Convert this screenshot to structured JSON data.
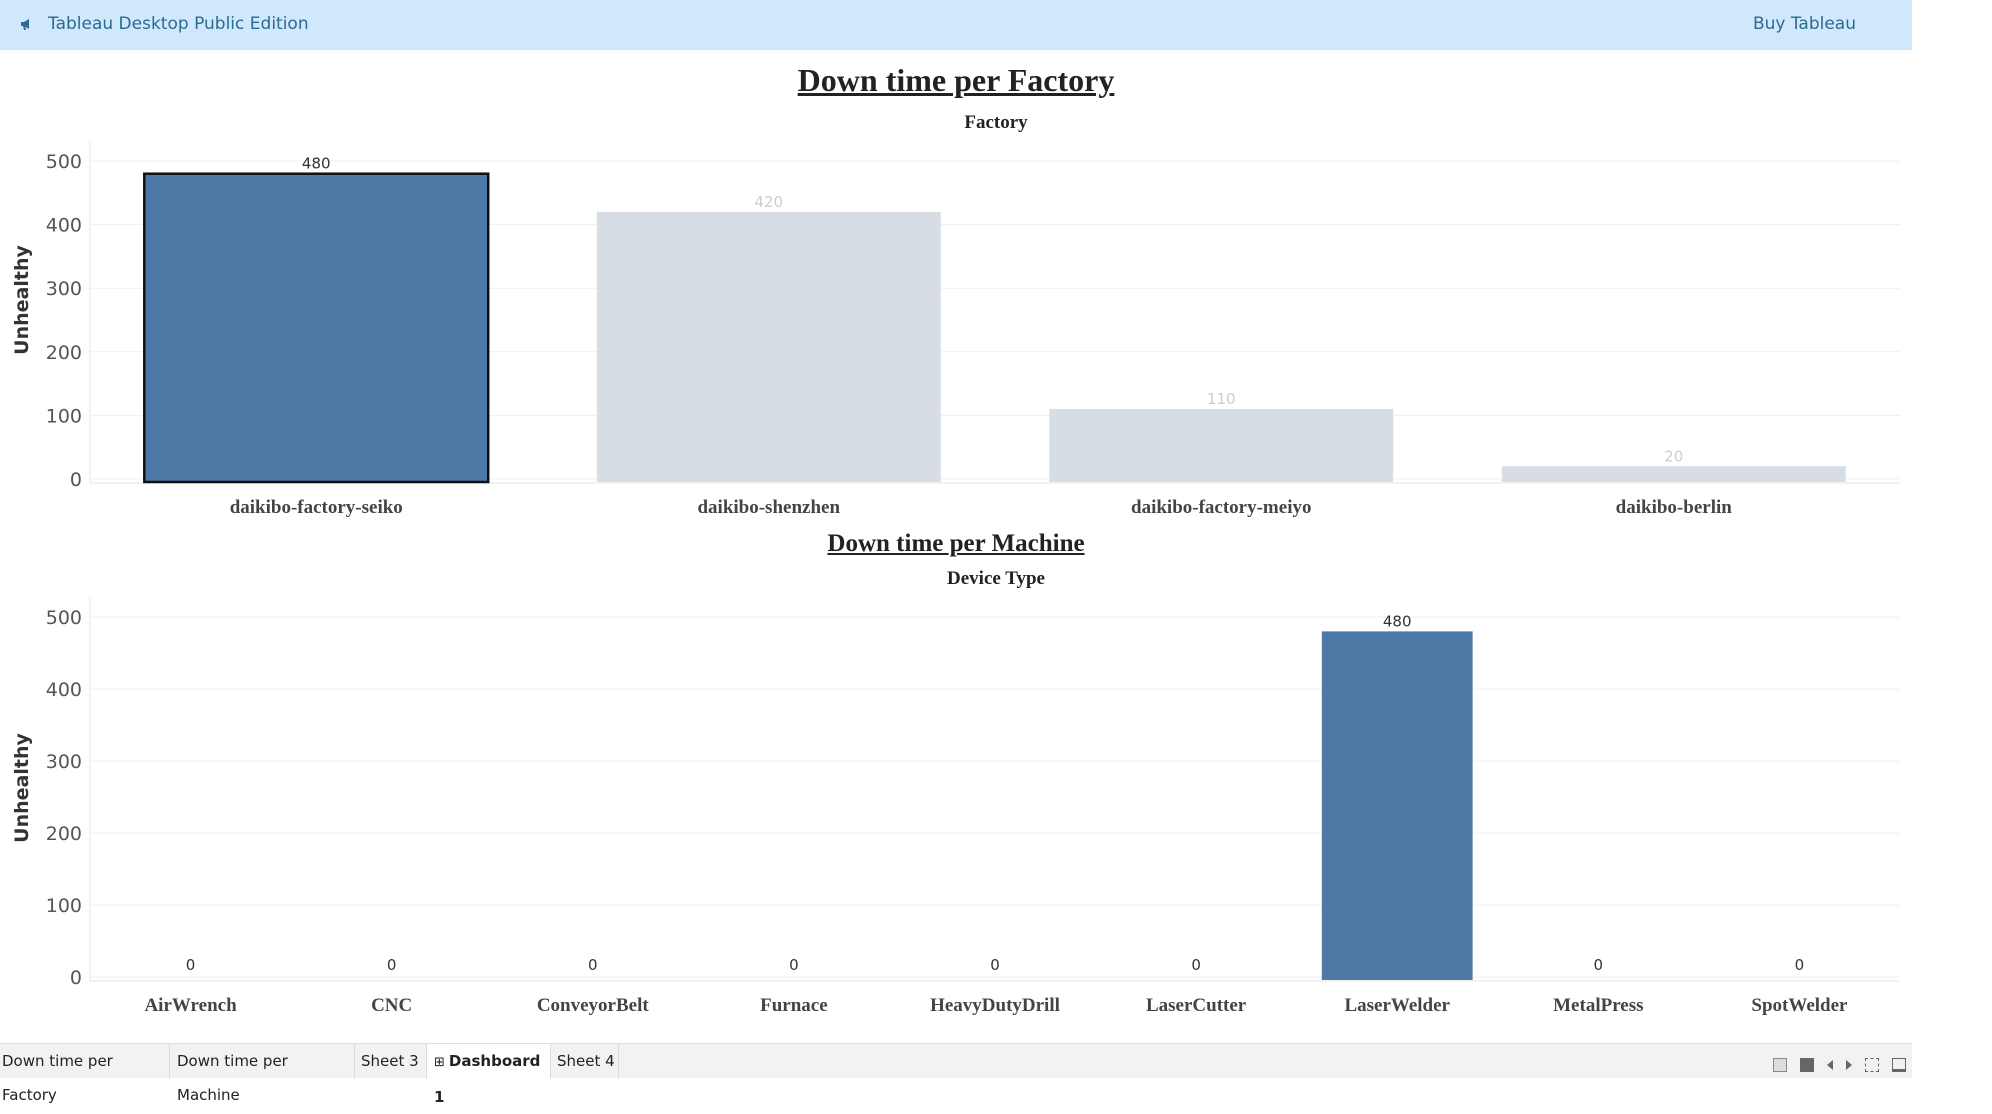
{
  "topbar": {
    "app_title": "Tableau Desktop Public Edition",
    "buy_label": "Buy Tableau",
    "icon": "megaphone-icon",
    "background": "#cfe8fb"
  },
  "factory_chart": {
    "title": "Down time per Factory",
    "group_header": "Factory",
    "ylabel": "Unhealthy",
    "yticks": [
      "500",
      "400",
      "300",
      "200",
      "100",
      "0"
    ],
    "data_labels": [
      "480",
      "420",
      "110",
      "20"
    ],
    "chart_data": {
      "type": "bar",
      "categories": [
        "daikibo-factory-seiko",
        "daikibo-shenzhen",
        "daikibo-factory-meiyo",
        "daikibo-berlin"
      ],
      "values": [
        480,
        420,
        110,
        20
      ],
      "ylim": [
        0,
        500
      ],
      "selected_index": 0,
      "selected_color": "#4e79a7",
      "unselected_color": "#d6dde5"
    }
  },
  "machine_chart": {
    "title": "Down time per Machine",
    "group_header": "Device Type",
    "ylabel": "Unhealthy",
    "yticks": [
      "500",
      "400",
      "300",
      "200",
      "100",
      "0"
    ],
    "data_labels": [
      "0",
      "0",
      "0",
      "0",
      "0",
      "0",
      "480",
      "0",
      "0"
    ],
    "chart_data": {
      "type": "bar",
      "categories": [
        "AirWrench",
        "CNC",
        "ConveyorBelt",
        "Furnace",
        "HeavyDutyDrill",
        "LaserCutter",
        "LaserWelder",
        "MetalPress",
        "SpotWelder"
      ],
      "values": [
        0,
        0,
        0,
        0,
        0,
        0,
        480,
        0,
        0
      ],
      "ylim": [
        0,
        500
      ],
      "bar_color": "#4e79a7"
    }
  },
  "tabs": [
    {
      "label": "Down time per Factory",
      "active": false
    },
    {
      "label": "Down time per Machine",
      "active": false
    },
    {
      "label": "Sheet 3",
      "active": false
    },
    {
      "label": "Dashboard 1",
      "active": true,
      "icon": "dashboard-grid-icon"
    },
    {
      "label": "Sheet 4",
      "active": false
    }
  ]
}
